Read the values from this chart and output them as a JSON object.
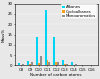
{
  "categories": [
    "C8",
    "C9",
    "C10",
    "C11",
    "C12",
    "C13",
    "C14",
    "C15",
    "C16"
  ],
  "alkanes": [
    1.0,
    2.0,
    14.0,
    27.0,
    14.0,
    2.5,
    1.5,
    0.3,
    0.2
  ],
  "cycloalkanes": [
    0.3,
    0.5,
    1.2,
    2.5,
    1.8,
    0.5,
    0.3,
    0.1,
    0.05
  ],
  "monoaromatics": [
    0.5,
    1.5,
    4.5,
    1.5,
    1.5,
    0.8,
    0.5,
    0.2,
    0.1
  ],
  "alkane_color": "#00d4f5",
  "cycloalkane_color": "#f5a020",
  "monoaromatic_color": "#909090",
  "xlabel": "Number of carbon atoms",
  "ylabel": "Mass%",
  "ylim": [
    0,
    30
  ],
  "yticks": [
    0,
    5,
    10,
    15,
    20,
    25,
    30
  ],
  "legend_labels": [
    "Alkanes",
    "Cycloalkanes",
    "Monoaromatics"
  ],
  "background_color": "#e8e8e8",
  "bar_width": 0.22,
  "axis_fontsize": 3.0,
  "tick_fontsize": 2.8,
  "legend_fontsize": 2.8
}
